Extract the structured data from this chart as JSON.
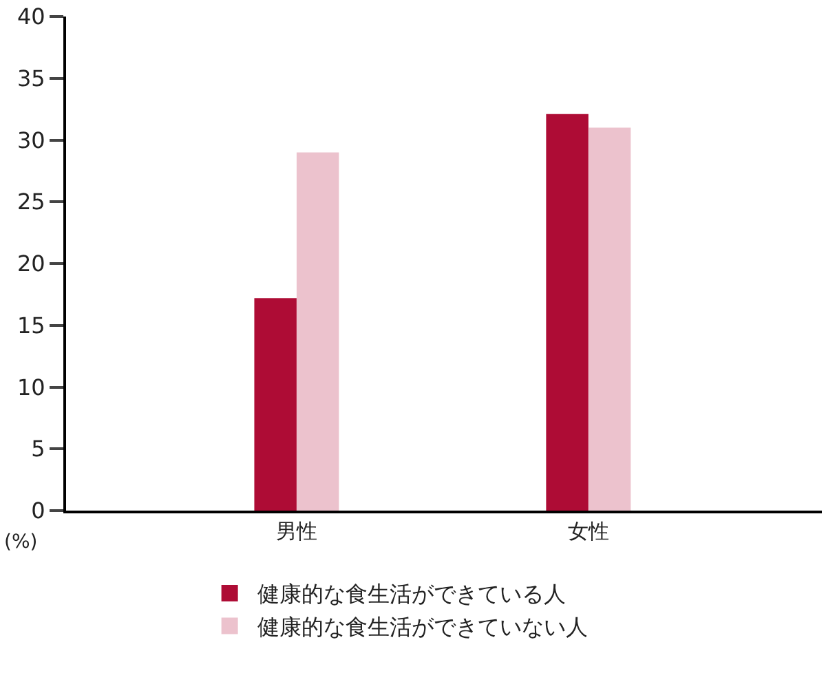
{
  "chart_data": {
    "type": "bar",
    "ylabel": "(%)",
    "categories": [
      "男性",
      "女性"
    ],
    "series": [
      {
        "name": "健康的な食生活ができている人",
        "color": "#ae0c35",
        "values": [
          17.2,
          32.1
        ]
      },
      {
        "name": "健康的な食生活ができていない人",
        "color": "#ecc2cd",
        "values": [
          29.0,
          31.0
        ]
      }
    ],
    "ylim": [
      0,
      40
    ],
    "yticks": [
      0,
      5,
      10,
      15,
      20,
      25,
      30,
      35,
      40
    ],
    "legend": "bottom"
  }
}
